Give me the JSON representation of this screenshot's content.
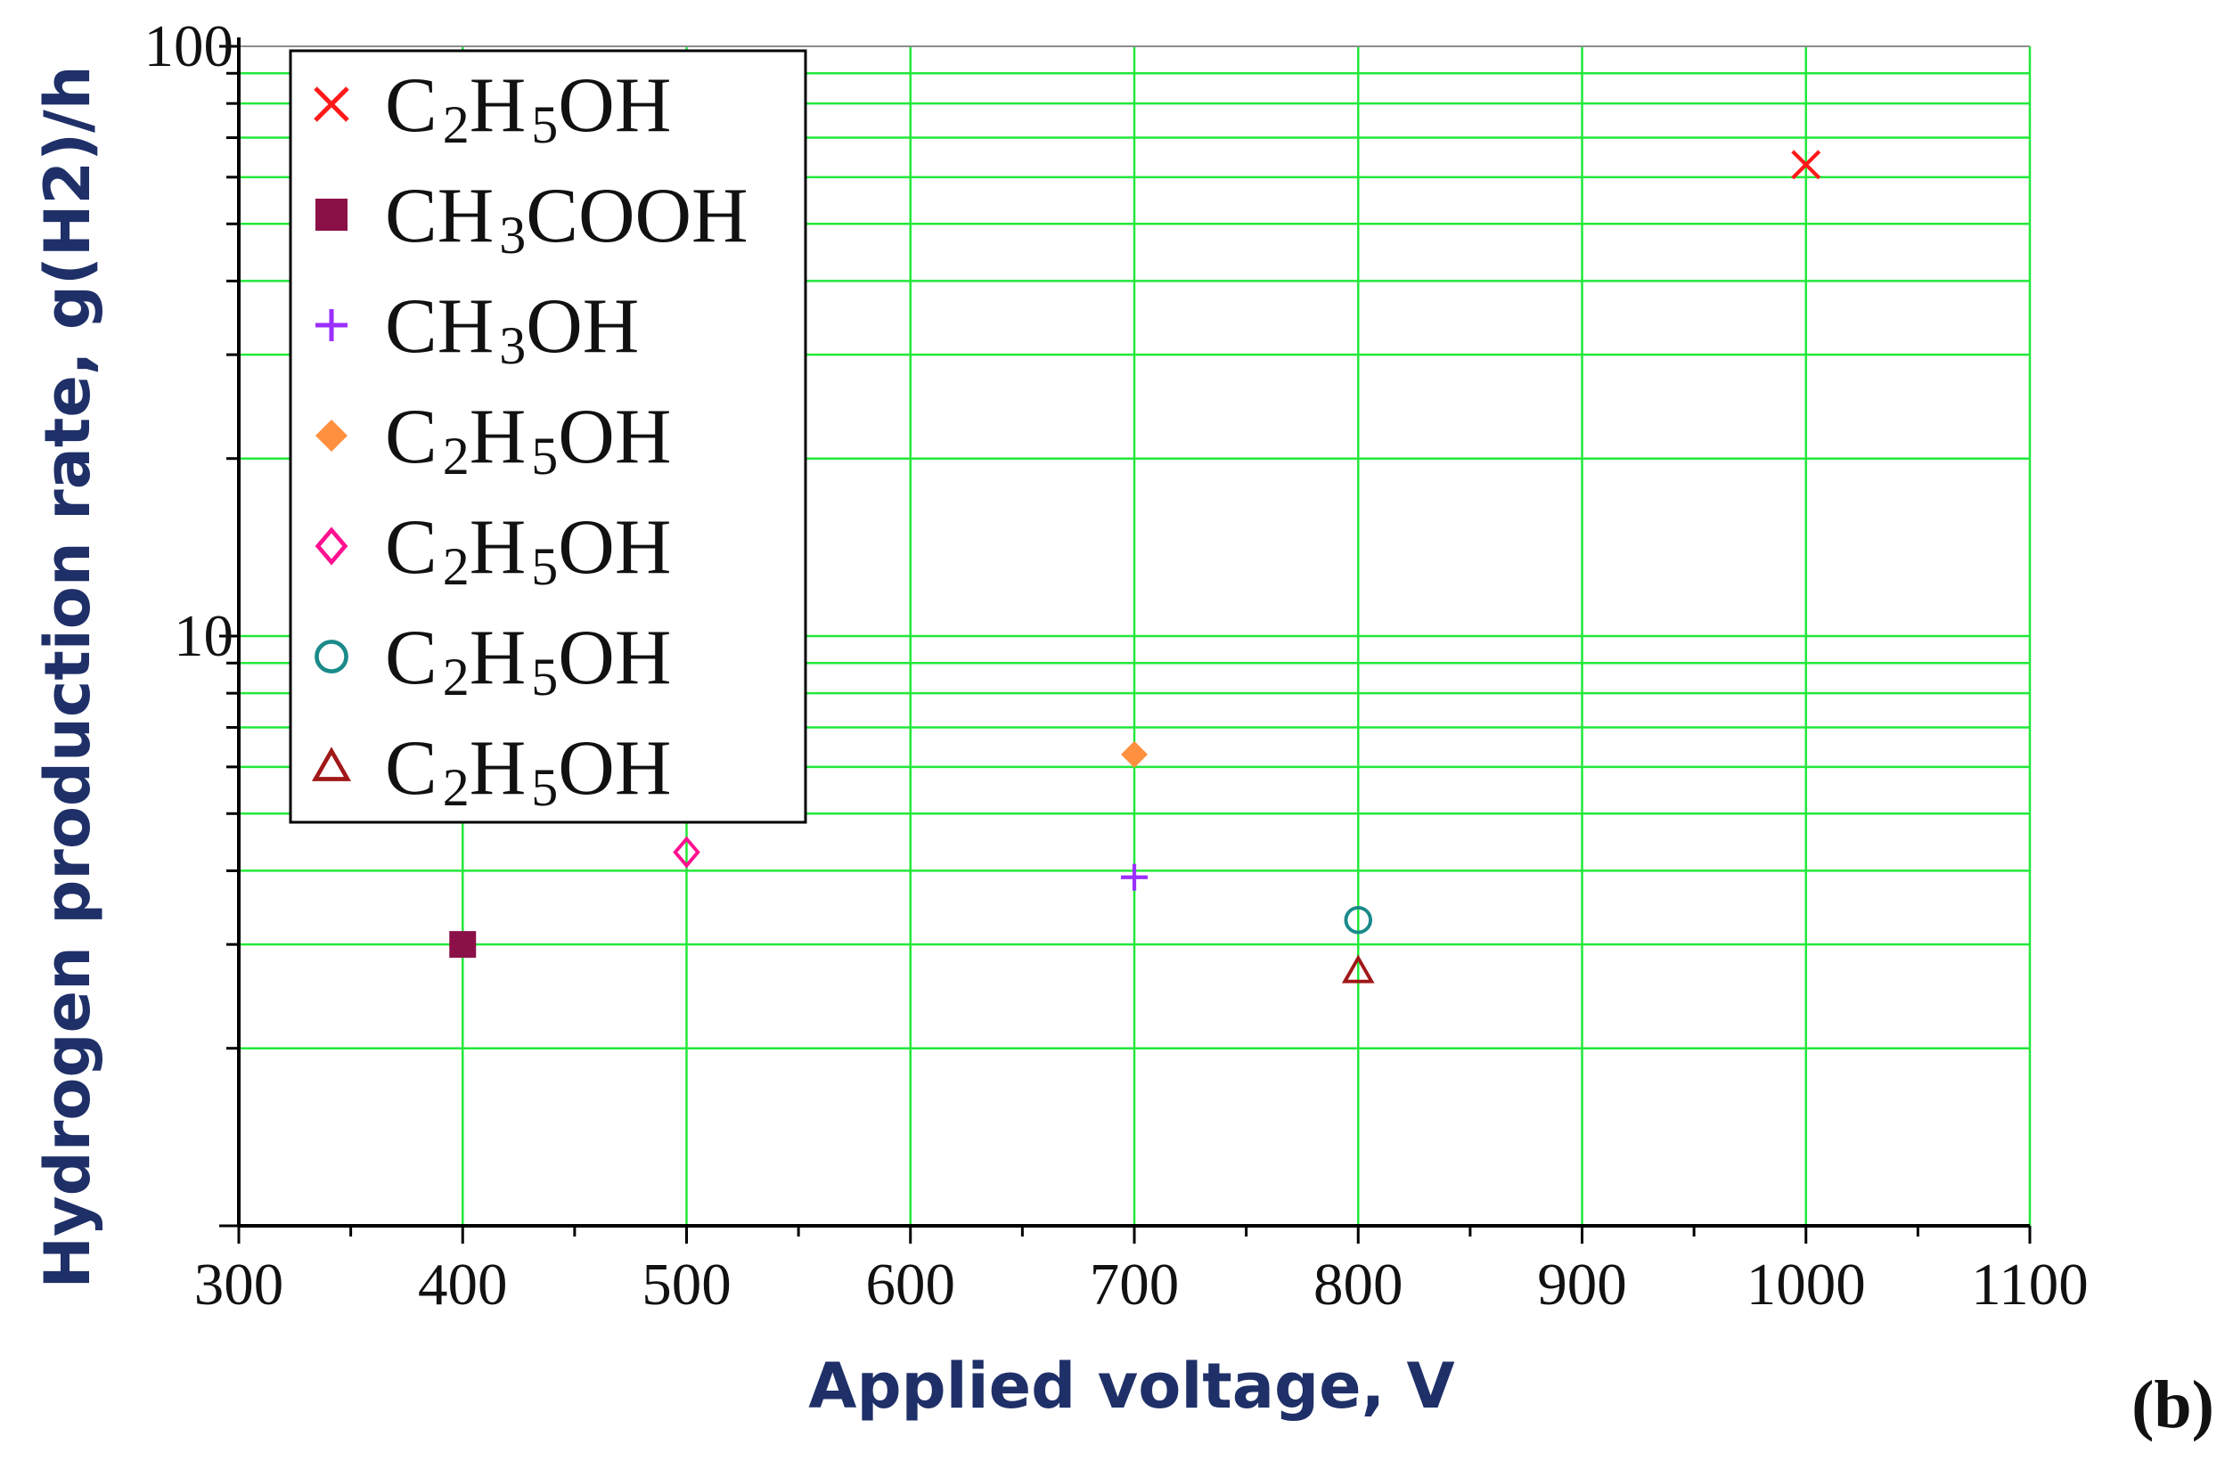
{
  "chart_data": {
    "type": "scatter",
    "xlabel": "Applied voltage, V",
    "ylabel": "Hydrogen production rate, g(H2)/h",
    "xlim": [
      300,
      1100
    ],
    "ylim": [
      1,
      100
    ],
    "y_scale": "log",
    "grid": true,
    "legend_position": "top-left",
    "x_ticks": [
      "300",
      "400",
      "500",
      "600",
      "700",
      "800",
      "900",
      "1000",
      "1100"
    ],
    "y_ticks": [
      "10",
      "100"
    ],
    "panel_label": "(b)",
    "series": [
      {
        "name": "C2H5OH",
        "marker": "x",
        "color": "#ff1a1a",
        "points": [
          {
            "x": 1000,
            "y": 63
          }
        ]
      },
      {
        "name": "CH3COOH",
        "marker": "square",
        "color": "#8b1048",
        "points": [
          {
            "x": 400,
            "y": 3.0
          }
        ]
      },
      {
        "name": "CH3OH",
        "marker": "plus",
        "color": "#9b30ff",
        "points": [
          {
            "x": 700,
            "y": 3.9
          }
        ]
      },
      {
        "name": "C2H5OH",
        "marker": "diamond-filled",
        "color": "#ff9040",
        "points": [
          {
            "x": 700,
            "y": 6.3
          }
        ]
      },
      {
        "name": "C2H5OH",
        "marker": "diamond-open",
        "color": "#ff1090",
        "points": [
          {
            "x": 500,
            "y": 4.3
          }
        ]
      },
      {
        "name": "C2H5OH",
        "marker": "circle-open",
        "color": "#1a8a8a",
        "points": [
          {
            "x": 800,
            "y": 3.3
          }
        ]
      },
      {
        "name": "C2H5OH",
        "marker": "triangle-open",
        "color": "#a01818",
        "points": [
          {
            "x": 800,
            "y": 2.7
          }
        ]
      }
    ],
    "colors": {
      "grid": "#22e83a",
      "major_grid": "#8c8c8c",
      "axis": "#000000",
      "title": "#1f3068"
    }
  }
}
